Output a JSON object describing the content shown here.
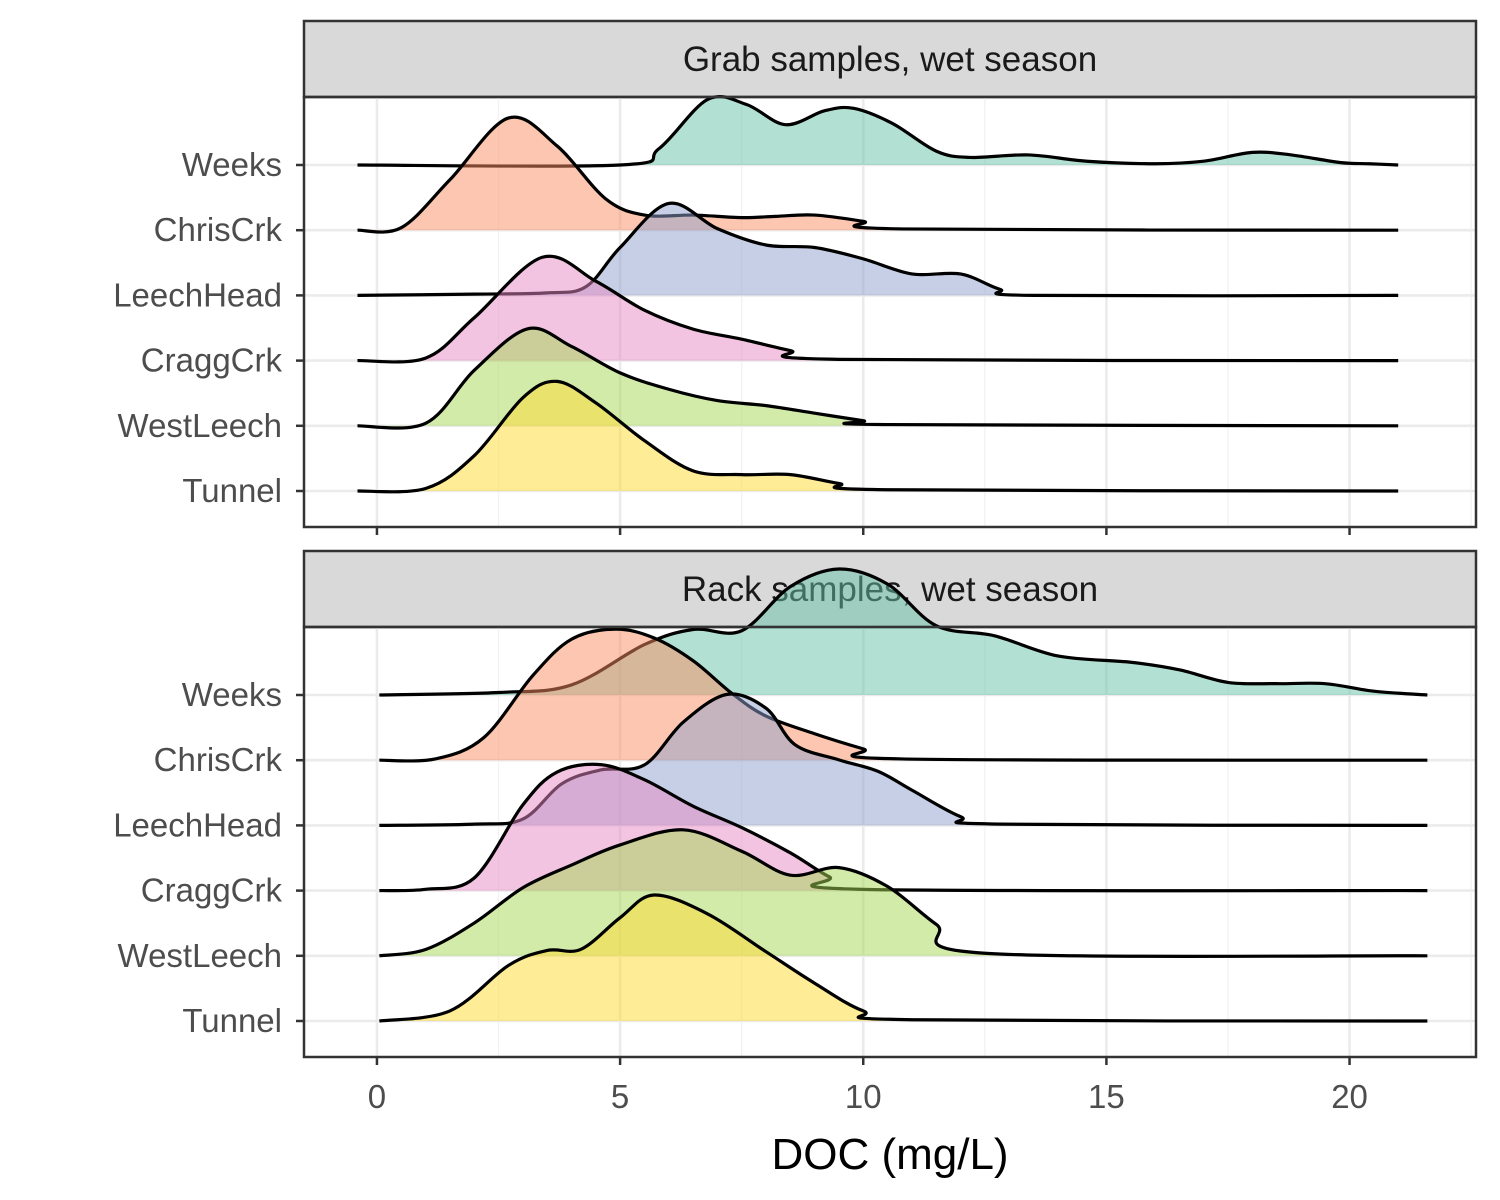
{
  "chart_data": {
    "type": "ridgeline-density",
    "xlabel": "DOC (mg/L)",
    "ylabel": "",
    "xlim": [
      -1.5,
      22.6
    ],
    "x_ticks": [
      0,
      5,
      10,
      15,
      20
    ],
    "x_tick_labels": [
      "0",
      "5",
      "10",
      "15",
      "20"
    ],
    "grid": true,
    "legend": "none",
    "sites": [
      "Tunnel",
      "WestLeech",
      "CraggCrk",
      "LeechHead",
      "ChrisCrk",
      "Weeks"
    ],
    "colors": {
      "Weeks": "#66C2A5",
      "ChrisCrk": "#FC8D62",
      "LeechHead": "#8DA0CB",
      "CraggCrk": "#E78AC3",
      "WestLeech": "#A6D854",
      "Tunnel": "#FFD92F"
    },
    "panels": [
      {
        "title": "Grab samples, wet season",
        "x_range": [
          -0.4,
          21.0
        ],
        "series": [
          {
            "name": "Tunnel",
            "x": [
              -0.4,
              1.0,
              2.0,
              3.0,
              3.7,
              4.5,
              5.5,
              6.5,
              7.5,
              8.5,
              9.5,
              10.5,
              21.0
            ],
            "y": [
              0,
              0.02,
              0.28,
              0.74,
              0.87,
              0.7,
              0.4,
              0.16,
              0.13,
              0.13,
              0.06,
              0.01,
              0
            ]
          },
          {
            "name": "WestLeech",
            "x": [
              -0.4,
              1.0,
              2.0,
              3.1,
              4.0,
              5.0,
              6.0,
              7.0,
              8.0,
              9.0,
              10.0,
              10.5,
              21.0
            ],
            "y": [
              0,
              0.02,
              0.44,
              0.77,
              0.63,
              0.42,
              0.29,
              0.2,
              0.16,
              0.1,
              0.04,
              0.01,
              0
            ]
          },
          {
            "name": "CraggCrk",
            "x": [
              -0.4,
              1.0,
              2.0,
              3.4,
              4.5,
              5.5,
              6.5,
              7.5,
              8.5,
              9.5,
              21.0
            ],
            "y": [
              0,
              0.02,
              0.34,
              0.82,
              0.63,
              0.4,
              0.25,
              0.17,
              0.08,
              0.01,
              0
            ]
          },
          {
            "name": "LeechHead",
            "x": [
              -0.4,
              2.0,
              3.5,
              4.3,
              5.0,
              6.0,
              7.0,
              8.0,
              9.0,
              10.0,
              11.0,
              12.0,
              12.8,
              13.5,
              21.0
            ],
            "y": [
              0,
              0.01,
              0.02,
              0.07,
              0.38,
              0.73,
              0.53,
              0.4,
              0.38,
              0.29,
              0.17,
              0.17,
              0.05,
              0,
              0
            ]
          },
          {
            "name": "ChrisCrk",
            "x": [
              -0.4,
              0.5,
              1.5,
              2.7,
              3.7,
              4.7,
              5.5,
              6.5,
              7.5,
              8.2,
              9.0,
              10.0,
              10.8,
              21.0
            ],
            "y": [
              0,
              0.02,
              0.4,
              0.89,
              0.67,
              0.25,
              0.12,
              0.12,
              0.1,
              0.11,
              0.12,
              0.07,
              0.01,
              0
            ]
          },
          {
            "name": "Weeks",
            "x": [
              -0.4,
              5.0,
              5.8,
              6.8,
              7.6,
              8.4,
              9.2,
              9.8,
              10.6,
              11.5,
              12.2,
              13.4,
              14.6,
              16.0,
              17.0,
              18.0,
              18.8,
              19.8,
              20.4,
              21.0
            ],
            "y": [
              0,
              0,
              0.13,
              0.52,
              0.48,
              0.32,
              0.43,
              0.45,
              0.33,
              0.11,
              0.06,
              0.08,
              0.03,
              0.01,
              0.03,
              0.1,
              0.08,
              0.02,
              0.01,
              0
            ]
          }
        ]
      },
      {
        "title": "Rack samples, wet season",
        "x_range": [
          0.05,
          21.6
        ],
        "series": [
          {
            "name": "Tunnel",
            "x": [
              0.05,
              1.5,
              2.7,
              3.5,
              4.2,
              5.0,
              5.7,
              6.8,
              8.0,
              9.0,
              10.0,
              11.0,
              21.6
            ],
            "y": [
              0,
              0.08,
              0.44,
              0.56,
              0.57,
              0.82,
              1.0,
              0.85,
              0.55,
              0.3,
              0.08,
              0.01,
              0
            ]
          },
          {
            "name": "WestLeech",
            "x": [
              0.05,
              1.0,
              2.0,
              3.0,
              4.0,
              5.0,
              6.3,
              7.5,
              8.5,
              9.5,
              10.5,
              11.5,
              12.5,
              21.6
            ],
            "y": [
              0,
              0.05,
              0.26,
              0.54,
              0.72,
              0.88,
              1.0,
              0.83,
              0.64,
              0.7,
              0.55,
              0.25,
              0.02,
              0
            ]
          },
          {
            "name": "CraggCrk",
            "x": [
              0.05,
              1.0,
              2.0,
              3.0,
              3.7,
              4.6,
              5.5,
              6.5,
              7.5,
              8.5,
              9.3,
              10.0,
              21.6
            ],
            "y": [
              0,
              0.01,
              0.1,
              0.68,
              0.94,
              1.0,
              0.88,
              0.67,
              0.5,
              0.3,
              0.11,
              0.01,
              0
            ]
          },
          {
            "name": "LeechHead",
            "x": [
              0.05,
              2.0,
              3.0,
              3.8,
              4.6,
              5.5,
              6.3,
              7.2,
              8.0,
              8.6,
              9.5,
              10.3,
              11.0,
              12.0,
              12.8,
              21.6
            ],
            "y": [
              0,
              0.01,
              0.05,
              0.33,
              0.44,
              0.48,
              0.82,
              1.04,
              0.93,
              0.64,
              0.52,
              0.43,
              0.28,
              0.07,
              0.01,
              0
            ]
          },
          {
            "name": "ChrisCrk",
            "x": [
              0.05,
              1.2,
              2.2,
              3.2,
              4.0,
              4.9,
              5.7,
              6.5,
              7.3,
              8.0,
              9.0,
              10.0,
              10.8,
              21.6
            ],
            "y": [
              0,
              0.01,
              0.18,
              0.67,
              0.96,
              1.04,
              0.97,
              0.79,
              0.53,
              0.35,
              0.21,
              0.09,
              0.01,
              0
            ]
          },
          {
            "name": "Weeks",
            "x": [
              0.05,
              2.5,
              4.0,
              5.5,
              6.5,
              7.5,
              8.5,
              9.5,
              10.5,
              11.5,
              12.7,
              14.0,
              15.5,
              16.5,
              17.5,
              18.5,
              19.5,
              20.5,
              21.6
            ],
            "y": [
              0,
              0.02,
              0.08,
              0.4,
              0.52,
              0.51,
              0.86,
              1.0,
              0.88,
              0.55,
              0.47,
              0.31,
              0.26,
              0.2,
              0.1,
              0.09,
              0.09,
              0.03,
              0
            ]
          }
        ]
      }
    ]
  }
}
